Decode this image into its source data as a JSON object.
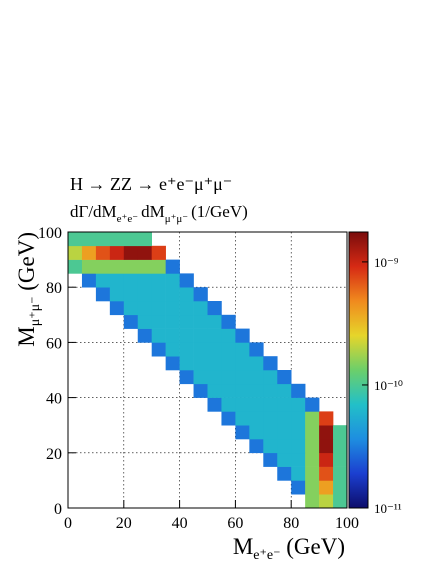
{
  "chart_data": {
    "type": "heatmap",
    "title": "H → ZZ → e⁺e⁻μ⁺μ⁻",
    "subtitle": [
      "dΓ/dM",
      "e⁺e⁻",
      "dM",
      "μ⁺μ⁻",
      "(1/GeV)"
    ],
    "x_label": [
      "M",
      "e⁺e⁻",
      " (GeV)"
    ],
    "y_label": [
      "M",
      "μ⁺μ⁻",
      " (GeV)"
    ],
    "xlim": [
      0,
      100
    ],
    "ylim": [
      0,
      100
    ],
    "xticks": [
      0,
      20,
      40,
      60,
      80,
      100
    ],
    "yticks": [
      0,
      20,
      40,
      60,
      80,
      100
    ],
    "grid": true,
    "zlog": true,
    "zlim": [
      1e-11,
      1.75e-09
    ],
    "zticks": [
      {
        "value": 1e-11,
        "label": "10⁻¹¹"
      },
      {
        "value": 1e-10,
        "label": "10⁻¹⁰"
      },
      {
        "value": 1e-09,
        "label": "10⁻⁹"
      }
    ],
    "colormap": [
      "#0d0d6b",
      "#1b3fd0",
      "#1e8ee0",
      "#22c0c8",
      "#6ccf6a",
      "#e6d52a",
      "#f08a1e",
      "#d62a14",
      "#7a0c0c"
    ],
    "xbins": [
      0,
      5,
      10,
      15,
      20,
      25,
      30,
      35,
      40,
      45,
      50,
      55,
      60,
      65,
      70,
      75,
      80,
      85,
      90,
      95,
      100
    ],
    "ybins": [
      0,
      5,
      10,
      15,
      20,
      25,
      30,
      35,
      40,
      45,
      50,
      55,
      60,
      65,
      70,
      75,
      80,
      85,
      90,
      95,
      100
    ],
    "z": [
      [
        null,
        null,
        null,
        null,
        null,
        null,
        null,
        null,
        null,
        null,
        null,
        null,
        null,
        null,
        null,
        null,
        null,
        1.5e-10,
        2e-10,
        1e-10
      ],
      [
        null,
        null,
        null,
        null,
        null,
        null,
        null,
        null,
        null,
        null,
        null,
        null,
        null,
        null,
        null,
        null,
        3e-11,
        1.5e-10,
        4e-10,
        1e-10
      ],
      [
        null,
        null,
        null,
        null,
        null,
        null,
        null,
        null,
        null,
        null,
        null,
        null,
        null,
        null,
        null,
        3e-11,
        6e-11,
        1.5e-10,
        7e-10,
        1e-10
      ],
      [
        null,
        null,
        null,
        null,
        null,
        null,
        null,
        null,
        null,
        null,
        null,
        null,
        null,
        null,
        3e-11,
        6e-11,
        6e-11,
        1.5e-10,
        1e-09,
        1e-10
      ],
      [
        null,
        null,
        null,
        null,
        null,
        null,
        null,
        null,
        null,
        null,
        null,
        null,
        null,
        3e-11,
        6e-11,
        6e-11,
        6e-11,
        1.5e-10,
        1.5e-09,
        1e-10
      ],
      [
        null,
        null,
        null,
        null,
        null,
        null,
        null,
        null,
        null,
        null,
        null,
        null,
        3e-11,
        6e-11,
        6e-11,
        6e-11,
        6e-11,
        1.5e-10,
        1.5e-09,
        1e-10
      ],
      [
        null,
        null,
        null,
        null,
        null,
        null,
        null,
        null,
        null,
        null,
        null,
        3e-11,
        6e-11,
        6e-11,
        6e-11,
        6e-11,
        6e-11,
        1.5e-10,
        8e-10,
        null
      ],
      [
        null,
        null,
        null,
        null,
        null,
        null,
        null,
        null,
        null,
        null,
        3e-11,
        6e-11,
        6e-11,
        6e-11,
        6e-11,
        6e-11,
        6e-11,
        3e-11,
        null,
        null
      ],
      [
        null,
        null,
        null,
        null,
        null,
        null,
        null,
        null,
        null,
        3e-11,
        6e-11,
        6e-11,
        6e-11,
        6e-11,
        6e-11,
        6e-11,
        3e-11,
        null,
        null,
        null
      ],
      [
        null,
        null,
        null,
        null,
        null,
        null,
        null,
        null,
        3e-11,
        6e-11,
        6e-11,
        6e-11,
        6e-11,
        6e-11,
        6e-11,
        3e-11,
        null,
        null,
        null,
        null
      ],
      [
        null,
        null,
        null,
        null,
        null,
        null,
        null,
        3e-11,
        6e-11,
        6e-11,
        6e-11,
        6e-11,
        6e-11,
        6e-11,
        3e-11,
        null,
        null,
        null,
        null,
        null
      ],
      [
        null,
        null,
        null,
        null,
        null,
        null,
        3e-11,
        6e-11,
        6e-11,
        6e-11,
        6e-11,
        6e-11,
        6e-11,
        3e-11,
        null,
        null,
        null,
        null,
        null,
        null
      ],
      [
        null,
        null,
        null,
        null,
        null,
        3e-11,
        6e-11,
        6e-11,
        6e-11,
        6e-11,
        6e-11,
        6e-11,
        3e-11,
        null,
        null,
        null,
        null,
        null,
        null,
        null
      ],
      [
        null,
        null,
        null,
        null,
        3e-11,
        6e-11,
        6e-11,
        6e-11,
        6e-11,
        6e-11,
        6e-11,
        3e-11,
        null,
        null,
        null,
        null,
        null,
        null,
        null,
        null
      ],
      [
        null,
        null,
        null,
        3e-11,
        6e-11,
        6e-11,
        6e-11,
        6e-11,
        6e-11,
        6e-11,
        3e-11,
        null,
        null,
        null,
        null,
        null,
        null,
        null,
        null,
        null
      ],
      [
        null,
        null,
        3e-11,
        6e-11,
        6e-11,
        6e-11,
        6e-11,
        6e-11,
        6e-11,
        3e-11,
        null,
        null,
        null,
        null,
        null,
        null,
        null,
        null,
        null,
        null
      ],
      [
        null,
        3e-11,
        6e-11,
        6e-11,
        6e-11,
        6e-11,
        6e-11,
        6e-11,
        3e-11,
        null,
        null,
        null,
        null,
        null,
        null,
        null,
        null,
        null,
        null,
        null
      ],
      [
        1e-10,
        1.5e-10,
        1.5e-10,
        1.5e-10,
        1.5e-10,
        1.5e-10,
        1.5e-10,
        3e-11,
        null,
        null,
        null,
        null,
        null,
        null,
        null,
        null,
        null,
        null,
        null,
        null
      ],
      [
        2e-10,
        4e-10,
        7e-10,
        1e-09,
        1.5e-09,
        1.5e-09,
        8e-10,
        null,
        null,
        null,
        null,
        null,
        null,
        null,
        null,
        null,
        null,
        null,
        null,
        null
      ],
      [
        1e-10,
        1e-10,
        1e-10,
        1e-10,
        1e-10,
        1e-10,
        null,
        null,
        null,
        null,
        null,
        null,
        null,
        null,
        null,
        null,
        null,
        null,
        null,
        null
      ]
    ]
  }
}
